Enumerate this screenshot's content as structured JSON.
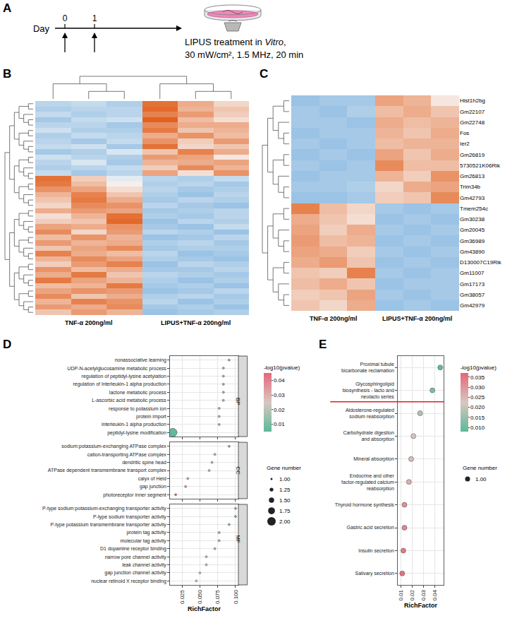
{
  "panel_letters": [
    "A",
    "B",
    "C",
    "D",
    "E"
  ],
  "diagram": {
    "axis_label": "Day",
    "days": [
      0,
      1
    ],
    "treatment_days": [
      0,
      1
    ],
    "caption": [
      "LIPUS treatment in Vitro,",
      "30 mW/cm², 1.5 MHz, 20 min"
    ],
    "italic_word": "Vitro"
  },
  "chart_data": [
    {
      "type": "heatmap",
      "groups": [
        {
          "name": "TNF-α 200ng/ml",
          "n": 3
        },
        {
          "name": "LIPUS+TNF-α 200ng/ml",
          "n": 3
        }
      ],
      "cells": [
        [
          -0.6,
          -0.5,
          -0.7,
          1.6,
          0.9,
          0.4
        ],
        [
          -0.7,
          -0.6,
          -0.6,
          1.7,
          0.8,
          0.6
        ],
        [
          -0.5,
          -0.7,
          -0.6,
          1.4,
          1.1,
          0.5
        ],
        [
          -0.8,
          -0.5,
          -0.4,
          1.8,
          0.7,
          0.3
        ],
        [
          -0.6,
          -0.6,
          -0.8,
          1.3,
          0.9,
          0.9
        ],
        [
          -0.4,
          -0.7,
          -0.7,
          1.5,
          0.6,
          0.8
        ],
        [
          -0.7,
          -0.5,
          -0.6,
          0.9,
          1.2,
          0.7
        ],
        [
          -0.6,
          -0.8,
          -0.5,
          1.2,
          0.5,
          1.1
        ],
        [
          -0.5,
          -0.4,
          -0.8,
          1.6,
          0.4,
          0.6
        ],
        [
          -0.8,
          -0.7,
          -0.3,
          0.6,
          1.4,
          0.9
        ],
        [
          -0.4,
          -0.6,
          -0.7,
          1.1,
          1.0,
          0.2
        ],
        [
          -0.6,
          -0.3,
          -0.8,
          0.8,
          0.9,
          1.0
        ],
        [
          -0.7,
          -0.6,
          -0.5,
          0.5,
          1.3,
          0.8
        ],
        [
          -0.5,
          -0.8,
          -0.6,
          1.0,
          0.3,
          1.2
        ],
        [
          1.6,
          0.5,
          -0.2,
          -0.6,
          -0.7,
          -0.5
        ],
        [
          1.5,
          0.7,
          0.1,
          -0.7,
          -0.6,
          -0.8
        ],
        [
          1.2,
          1.0,
          0.3,
          -0.6,
          -0.8,
          -0.7
        ],
        [
          0.8,
          1.4,
          0.6,
          -0.7,
          -0.9,
          -0.6
        ],
        [
          0.6,
          1.5,
          0.9,
          -0.8,
          -0.6,
          -0.7
        ],
        [
          0.4,
          1.3,
          1.2,
          -0.6,
          -0.8,
          -0.9
        ],
        [
          0.9,
          1.1,
          1.0,
          -0.8,
          -0.7,
          -0.6
        ],
        [
          0.3,
          0.8,
          1.6,
          -0.7,
          -0.8,
          -0.6
        ],
        [
          0.5,
          0.6,
          1.7,
          -0.9,
          -0.6,
          -0.7
        ],
        [
          1.0,
          0.9,
          1.2,
          -0.8,
          -0.9,
          -0.5
        ],
        [
          1.3,
          0.4,
          1.1,
          -0.6,
          -0.7,
          -0.9
        ],
        [
          0.7,
          1.2,
          0.8,
          -0.9,
          -0.8,
          -0.6
        ],
        [
          1.1,
          0.8,
          0.9,
          -0.7,
          -0.6,
          -0.8
        ],
        [
          0.6,
          1.0,
          1.3,
          -0.8,
          -0.7,
          -0.7
        ],
        [
          1.4,
          0.9,
          0.7,
          -0.6,
          -0.9,
          -0.8
        ],
        [
          0.8,
          1.3,
          1.0,
          -0.7,
          -0.8,
          -0.9
        ],
        [
          0.5,
          1.1,
          1.4,
          -0.9,
          -0.6,
          -0.7
        ],
        [
          1.2,
          0.7,
          0.9,
          -0.8,
          -0.8,
          -0.6
        ],
        [
          0.9,
          1.5,
          0.6,
          -0.6,
          -0.7,
          -0.8
        ],
        [
          1.5,
          1.0,
          0.8,
          -0.7,
          -0.9,
          -0.7
        ],
        [
          0.7,
          0.8,
          1.5,
          -0.8,
          -0.7,
          -0.9
        ],
        [
          1.0,
          1.2,
          1.1,
          -0.9,
          -0.8,
          -0.6
        ],
        [
          1.3,
          0.6,
          0.9,
          -0.7,
          -0.6,
          -0.8
        ],
        [
          0.8,
          1.4,
          1.2,
          -0.6,
          -0.9,
          -0.7
        ],
        [
          1.1,
          0.9,
          1.3,
          -0.8,
          -0.7,
          -0.9
        ],
        [
          0.6,
          1.1,
          0.8,
          -0.9,
          -0.8,
          -0.7
        ]
      ],
      "color_range": [
        -1.8,
        1.8
      ],
      "tick_labels": false
    },
    {
      "type": "heatmap",
      "groups": [
        {
          "name": "TNF-α 200ng/ml",
          "n": 3
        },
        {
          "name": "LIPUS+TNF-α 200ng/ml",
          "n": 3
        }
      ],
      "row_labels": [
        "Hist1h2bg",
        "Gm22107",
        "Gm22748",
        "Fos",
        "Ier2",
        "Gm26819",
        "5730521K06Rik",
        "Gm26813",
        "Trim34b",
        "Gm42793",
        "Tmem254c",
        "Gm30238",
        "Gm20045",
        "Gm36989",
        "Gm43890",
        "D130007C19Rik",
        "Gm11007",
        "Gm17173",
        "Gm38057",
        "Gm42979"
      ],
      "cells": [
        [
          -0.9,
          -0.8,
          -0.8,
          1.0,
          0.8,
          0.2
        ],
        [
          -0.8,
          -0.9,
          -0.7,
          0.7,
          0.9,
          0.6
        ],
        [
          -0.8,
          -0.8,
          -0.9,
          0.9,
          0.7,
          0.8
        ],
        [
          -0.9,
          -0.8,
          -0.8,
          0.8,
          0.6,
          0.9
        ],
        [
          -0.8,
          -0.9,
          -0.8,
          0.7,
          0.8,
          0.8
        ],
        [
          -0.9,
          -0.8,
          -0.9,
          1.0,
          0.6,
          0.9
        ],
        [
          -0.8,
          -0.9,
          -0.8,
          1.3,
          0.7,
          0.7
        ],
        [
          -0.9,
          -0.8,
          -0.8,
          0.8,
          0.5,
          1.2
        ],
        [
          -0.8,
          -0.8,
          -0.7,
          0.4,
          0.9,
          1.0
        ],
        [
          -0.9,
          -0.9,
          -0.8,
          0.5,
          0.6,
          1.3
        ],
        [
          1.4,
          0.7,
          0.4,
          -0.8,
          -0.9,
          -0.8
        ],
        [
          0.9,
          0.6,
          0.3,
          -0.9,
          -0.8,
          -0.9
        ],
        [
          1.0,
          0.5,
          0.9,
          -0.8,
          -0.9,
          -0.8
        ],
        [
          1.1,
          0.7,
          0.8,
          -0.9,
          -0.8,
          -0.9
        ],
        [
          1.0,
          0.9,
          0.5,
          -0.8,
          -0.9,
          -0.8
        ],
        [
          0.9,
          1.1,
          0.6,
          -0.9,
          -0.8,
          -0.9
        ],
        [
          0.6,
          0.5,
          1.4,
          -0.8,
          -0.9,
          -0.8
        ],
        [
          0.7,
          0.9,
          0.6,
          -0.9,
          -0.8,
          -0.8
        ],
        [
          0.5,
          0.6,
          1.0,
          -0.8,
          -0.9,
          -0.8
        ],
        [
          0.6,
          0.4,
          0.9,
          -0.9,
          -0.8,
          -0.9
        ]
      ],
      "color_range": [
        -1.8,
        1.8
      ],
      "tick_labels": "y"
    },
    {
      "type": "scatter",
      "x_label": "RichFactor",
      "xlim": [
        0.008,
        0.104
      ],
      "xticks": [
        0.025,
        {
          "value": 0.05,
          "label": "0.050"
        },
        0.075,
        {
          "value": 0.1,
          "label": "0.100"
        }
      ],
      "grid": true,
      "facets": [
        {
          "name": "BP",
          "terms": [
            "nonassociative learning",
            "UDP-N-acetylglucosamine metabolic process",
            "regulation of peptidyl-lysine acetylation",
            "regulation of interleukin-1 alpha production",
            "lactone metabolic process",
            "L-ascorbic acid metabolic process",
            "response to potassium ion",
            "protein import",
            "interleukin-1 alpha production",
            "peptidyl-lysine modification"
          ],
          "rich_factor": [
            0.091,
            0.083,
            0.083,
            0.083,
            0.083,
            0.083,
            0.077,
            0.077,
            0.077,
            0.012
          ],
          "pvalue": [
            0.012,
            0.013,
            0.013,
            0.013,
            0.013,
            0.013,
            0.015,
            0.015,
            0.015,
            0.006
          ],
          "gene_number": [
            1,
            1,
            1,
            1,
            1,
            1,
            1,
            1,
            1,
            2
          ]
        },
        {
          "name": "CC",
          "terms": [
            "sodium:potassium-exchanging ATPase complex",
            "cation-transporting ATPase complex",
            "dendritic spine head",
            "ATPase dependent transmembrane transport complex",
            "calyx of Held",
            "gap junction",
            "photoreceptor inner segment"
          ],
          "rich_factor": [
            0.091,
            0.071,
            0.067,
            0.063,
            0.033,
            0.03,
            0.016
          ],
          "pvalue": [
            0.012,
            0.016,
            0.017,
            0.018,
            0.033,
            0.036,
            0.042
          ],
          "gene_number": [
            1,
            1,
            1,
            1,
            1,
            1,
            1
          ]
        },
        {
          "name": "MF",
          "terms": [
            "P-type sodium:potassium-exchanging transporter activity",
            "P-type sodium transporter activity",
            "P-type potassium transmembrane transporter activity",
            "protein tag activity",
            "molecular tag activity",
            "D1 dopamine receptor binding",
            "narrow pore channel activity",
            "leak channel activity",
            "gap junction channel activity",
            "nuclear retinoid X receptor binding"
          ],
          "rich_factor": [
            0.1,
            0.1,
            0.091,
            0.077,
            0.077,
            0.071,
            0.059,
            0.059,
            0.05,
            0.045
          ],
          "pvalue": [
            0.011,
            0.011,
            0.012,
            0.015,
            0.015,
            0.016,
            0.02,
            0.02,
            0.023,
            0.026
          ],
          "gene_number": [
            1,
            1,
            1,
            1,
            1,
            1,
            1,
            1,
            1,
            1
          ]
        }
      ],
      "color_label": "-log10(pvalue)",
      "color_range": [
        0.005,
        0.045
      ],
      "color_ticks": [
        0.01,
        0.02,
        0.03,
        0.04
      ],
      "size_label": "Gene number",
      "size_ticks": [
        {
          "value": 1,
          "label": "1.00"
        },
        {
          "value": 1.25,
          "label": "1.25"
        },
        {
          "value": 1.5,
          "label": "1.50"
        },
        {
          "value": 1.75,
          "label": "1.75"
        },
        {
          "value": 2,
          "label": "2.00"
        }
      ]
    },
    {
      "type": "scatter",
      "x_label": "RichFactor",
      "xlim": [
        0.007,
        0.048
      ],
      "xticks": [
        0.01,
        0.02,
        0.03,
        0.04
      ],
      "grid": true,
      "terms": [
        "Proximal tubule bicarbonate reclamation",
        "Glycosphingolipid biosynthesis - lacto and neolacto series",
        "Aldosterone-regulated sodium reabsorption",
        "Carbohydrate digestion and absorption",
        "Mineral absorption",
        "Endocrine and other factor-regulated calcium reabsorption",
        "Thyroid hormone synthesis",
        "Gastric acid secretion",
        "Insulin secretion",
        "Salivary secretion"
      ],
      "rich_factor": [
        0.045,
        0.038,
        0.027,
        0.021,
        0.019,
        0.017,
        0.013,
        0.013,
        0.012,
        0.011
      ],
      "pvalue": [
        0.009,
        0.012,
        0.018,
        0.022,
        0.024,
        0.026,
        0.031,
        0.032,
        0.034,
        0.035
      ],
      "gene_number": [
        1,
        1,
        1,
        1,
        1,
        1,
        1,
        1,
        1,
        1
      ],
      "color_label": "-log10(pvalue)",
      "color_range": [
        0.008,
        0.037
      ],
      "color_ticks": [
        {
          "value": 0.01,
          "label": "0.010"
        },
        0.015,
        {
          "value": 0.02,
          "label": "0.020"
        },
        0.025,
        {
          "value": 0.03,
          "label": "0.030"
        },
        0.035
      ],
      "size_label": "Gene number",
      "size_ticks": [
        {
          "value": 1,
          "label": "1.00"
        }
      ]
    }
  ]
}
